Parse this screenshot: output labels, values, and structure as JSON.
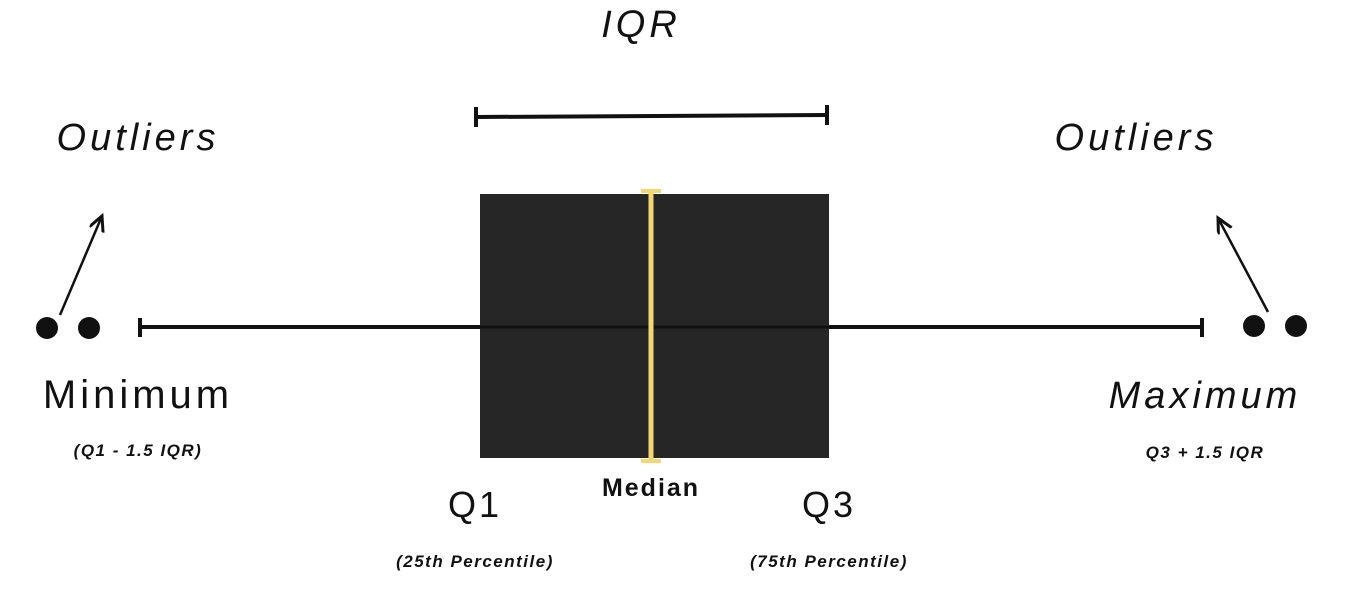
{
  "labels": {
    "iqr": "IQR",
    "outliers_left": "Outliers",
    "outliers_right": "Outliers",
    "minimum": "Minimum",
    "minimum_formula": "(Q1 - 1.5 IQR)",
    "maximum": "Maximum",
    "maximum_formula": "Q3 + 1.5 IQR",
    "q1": "Q1",
    "q1_note": "(25th Percentile)",
    "median": "Median",
    "q3": "Q3",
    "q3_note": "(75th Percentile)"
  },
  "colors": {
    "box_fill": "#262626",
    "median_line": "#f4d675",
    "ink": "#111111",
    "background": "#ffffff"
  },
  "icons": {
    "outlier_point": "filled-circle",
    "pointer": "arrow"
  }
}
